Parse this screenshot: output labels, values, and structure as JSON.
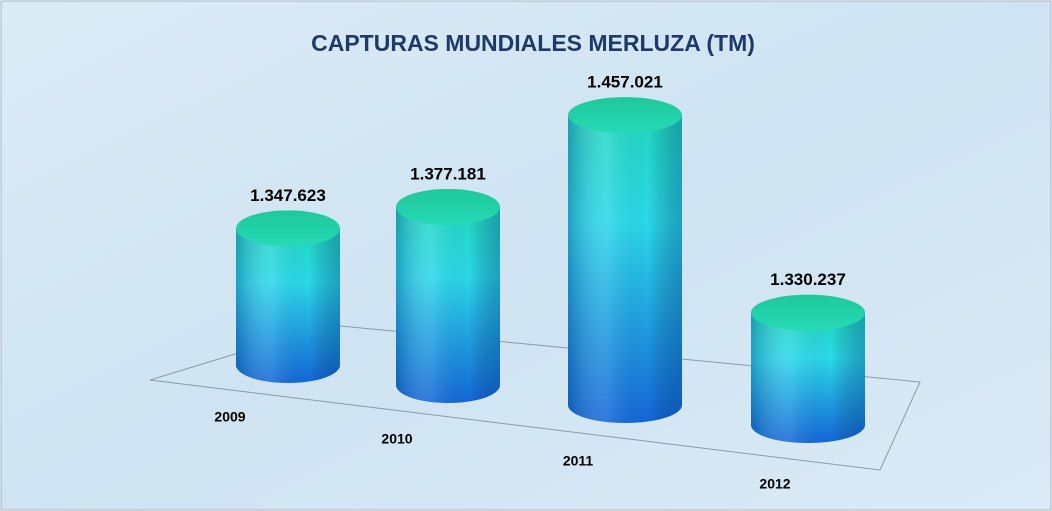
{
  "chart_data": {
    "type": "bar3d",
    "title": "CAPTURAS MUNDIALES MERLUZA (TM)",
    "categories": [
      "2009",
      "2010",
      "2011",
      "2012"
    ],
    "values": [
      1347623,
      1377181,
      1457021,
      1330237
    ],
    "value_labels": [
      "1.347.623",
      "1.377.181",
      "1.457.021",
      "1.330.237"
    ],
    "ylim": [
      1250000,
      1500000
    ]
  }
}
